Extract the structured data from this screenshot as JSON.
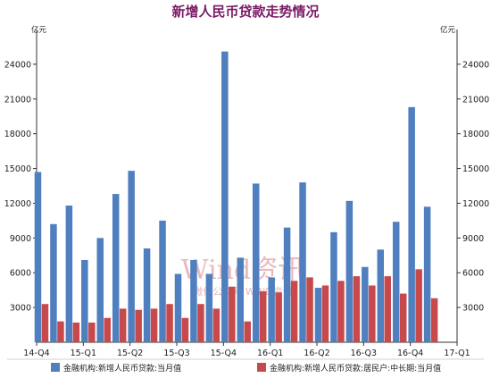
{
  "chart_data": {
    "type": "bar",
    "title": "新增人民币贷款走势情况",
    "unit_left": "亿元",
    "unit_right": "亿元",
    "y_range": [
      0,
      27000
    ],
    "y_ticks": [
      3000,
      6000,
      9000,
      12000,
      15000,
      18000,
      21000,
      24000
    ],
    "x_tick_labels": [
      "14-Q4",
      "15-Q1",
      "15-Q2",
      "15-Q3",
      "15-Q4",
      "16-Q1",
      "16-Q2",
      "16-Q3",
      "16-Q4",
      "17-Q1"
    ],
    "grid": false,
    "legend_position": "bottom",
    "series": [
      {
        "name": "金融机构:新增人民币贷款:当月值",
        "color": "#4f7fbf",
        "values": [
          14700,
          10200,
          11800,
          7100,
          9000,
          12800,
          14800,
          8100,
          10500,
          5900,
          7100,
          5900,
          25100,
          7300,
          13700,
          5600,
          9900,
          13800,
          4700,
          9500,
          12200,
          6500,
          8000,
          10400,
          20300,
          11700
        ]
      },
      {
        "name": "金融机构:新增人民币贷款:居民户:中长期:当月值",
        "color": "#c8494b",
        "values": [
          3300,
          1800,
          1700,
          1700,
          2100,
          2900,
          2800,
          2900,
          3300,
          2100,
          3300,
          2900,
          4800,
          1800,
          4400,
          4300,
          5300,
          5600,
          4900,
          5300,
          5700,
          4900,
          5700,
          4200,
          6300,
          3800
        ]
      }
    ]
  },
  "watermark": {
    "brand": "Wind资讯",
    "sub": "微信公众号 WIND资讯"
  }
}
